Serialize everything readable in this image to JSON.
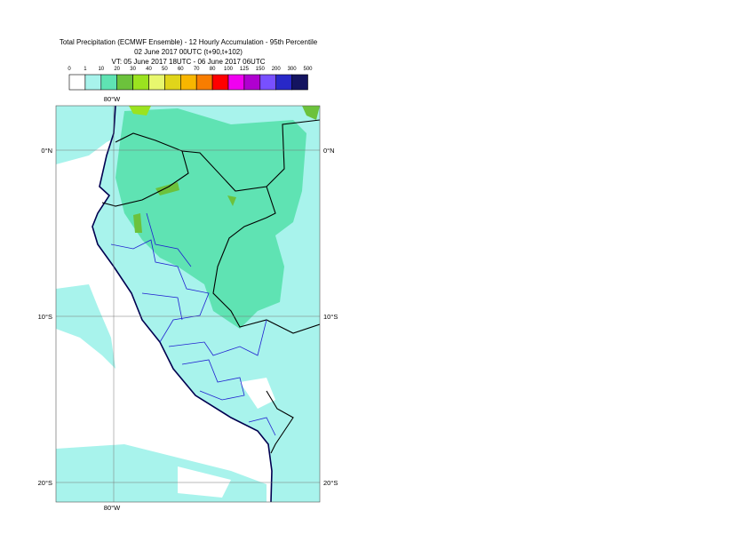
{
  "header": {
    "title": "Total Precipitation (ECMWF Ensemble) - 12 Hourly Accumulation - 95th Percentile",
    "run": "02 June 2017 00UTC (t+90,t+102)",
    "valid": "VT: 05 June 2017 18UTC - 06 June 2017 06UTC"
  },
  "legend": {
    "labels": [
      "0",
      "1",
      "10",
      "20",
      "30",
      "40",
      "50",
      "60",
      "70",
      "80",
      "100",
      "125",
      "150",
      "200",
      "300",
      "500"
    ],
    "colors": [
      "#ffffff",
      "#a8f3ec",
      "#5fe3b3",
      "#6cc23c",
      "#9be31f",
      "#e8f76e",
      "#e0d51a",
      "#f8b600",
      "#f87d00",
      "#ff0000",
      "#f000f0",
      "#b000d0",
      "#7850ff",
      "#2828c8",
      "#141460"
    ]
  },
  "map": {
    "lon_labels": [
      "80°W"
    ],
    "lat_labels": [
      "0°N",
      "10°S",
      "20°S"
    ]
  }
}
